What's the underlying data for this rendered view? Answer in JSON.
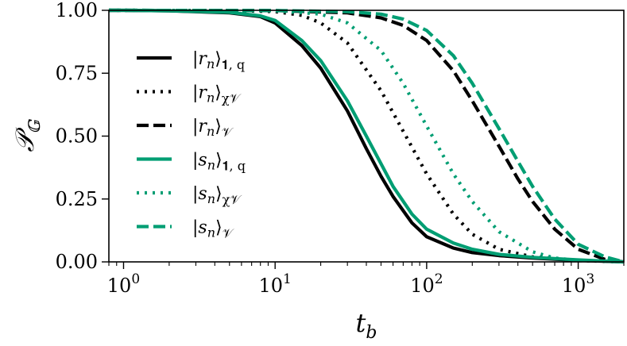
{
  "chart_data": {
    "type": "line",
    "xscale": "log",
    "xlim": [
      0.8,
      2000
    ],
    "ylim": [
      0.0,
      1.0
    ],
    "xlabel": "t_b",
    "ylabel": "𝒫_𝔾",
    "x_ticks": [
      {
        "value": 1,
        "base": "10",
        "exp": "0"
      },
      {
        "value": 10,
        "base": "10",
        "exp": "1"
      },
      {
        "value": 100,
        "base": "10",
        "exp": "2"
      },
      {
        "value": 1000,
        "base": "10",
        "exp": "3"
      }
    ],
    "y_ticks": [
      {
        "value": 0.0,
        "label": "0.00"
      },
      {
        "value": 0.25,
        "label": "0.25"
      },
      {
        "value": 0.5,
        "label": "0.50"
      },
      {
        "value": 0.75,
        "label": "0.75"
      },
      {
        "value": 1.0,
        "label": "1.00"
      }
    ],
    "legend_position": "left",
    "colors": {
      "black": "#000000",
      "green": "#009e73"
    },
    "series": [
      {
        "name": "|r_n⟩_{1, q}",
        "ket": "r",
        "sub": "𝟏, q",
        "color": "#000000",
        "style": "solid",
        "x": [
          0.8,
          1,
          2,
          5,
          8,
          10,
          15,
          20,
          30,
          40,
          50,
          60,
          80,
          100,
          150,
          200,
          300,
          500,
          1000,
          2000
        ],
        "y": [
          1.0,
          1.0,
          0.998,
          0.99,
          0.975,
          0.95,
          0.86,
          0.77,
          0.6,
          0.45,
          0.34,
          0.26,
          0.155,
          0.1,
          0.055,
          0.037,
          0.025,
          0.015,
          0.006,
          0.0
        ]
      },
      {
        "name": "|r_n⟩_{χ𝒱}",
        "ket": "r",
        "sub": "χ𝒱",
        "color": "#000000",
        "style": "dotted",
        "x": [
          0.8,
          1,
          5,
          10,
          15,
          20,
          30,
          50,
          70,
          100,
          150,
          200,
          300,
          500,
          1000,
          2000
        ],
        "y": [
          1.0,
          1.0,
          0.999,
          0.995,
          0.98,
          0.95,
          0.87,
          0.68,
          0.52,
          0.35,
          0.19,
          0.11,
          0.05,
          0.02,
          0.005,
          0.0
        ]
      },
      {
        "name": "|r_n⟩_𝒱",
        "ket": "r",
        "sub": "𝒱",
        "color": "#000000",
        "style": "dashed",
        "x": [
          0.8,
          1,
          10,
          30,
          50,
          70,
          100,
          150,
          200,
          300,
          400,
          500,
          700,
          1000,
          1500,
          2000
        ],
        "y": [
          1.0,
          1.0,
          0.999,
          0.99,
          0.97,
          0.94,
          0.88,
          0.76,
          0.64,
          0.46,
          0.33,
          0.24,
          0.13,
          0.05,
          0.01,
          0.0
        ]
      },
      {
        "name": "|s_n⟩_{1, q}",
        "ket": "s",
        "sub": "𝟏, q",
        "color": "#009e73",
        "style": "solid",
        "x": [
          0.8,
          1,
          2,
          5,
          8,
          10,
          15,
          20,
          30,
          40,
          50,
          60,
          80,
          100,
          150,
          200,
          300,
          500,
          1000,
          2000
        ],
        "y": [
          1.0,
          1.0,
          0.998,
          0.992,
          0.978,
          0.96,
          0.88,
          0.8,
          0.64,
          0.5,
          0.39,
          0.3,
          0.19,
          0.13,
          0.075,
          0.05,
          0.03,
          0.018,
          0.008,
          0.0
        ]
      },
      {
        "name": "|s_n⟩_{χ𝒱}",
        "ket": "s",
        "sub": "χ𝒱",
        "color": "#009e73",
        "style": "dotted",
        "x": [
          0.8,
          1,
          5,
          10,
          20,
          30,
          50,
          70,
          100,
          150,
          200,
          300,
          500,
          700,
          1000,
          2000
        ],
        "y": [
          1.0,
          1.0,
          0.999,
          0.998,
          0.985,
          0.95,
          0.84,
          0.71,
          0.54,
          0.35,
          0.24,
          0.12,
          0.04,
          0.015,
          0.006,
          0.0
        ]
      },
      {
        "name": "|s_n⟩_𝒱",
        "ket": "s",
        "sub": "𝒱",
        "color": "#009e73",
        "style": "dashed",
        "x": [
          0.8,
          1,
          10,
          30,
          50,
          70,
          100,
          150,
          200,
          300,
          400,
          500,
          700,
          1000,
          1500,
          2000
        ],
        "y": [
          1.0,
          1.0,
          0.999,
          0.995,
          0.985,
          0.965,
          0.92,
          0.82,
          0.71,
          0.53,
          0.4,
          0.3,
          0.17,
          0.07,
          0.02,
          0.0
        ]
      }
    ]
  }
}
